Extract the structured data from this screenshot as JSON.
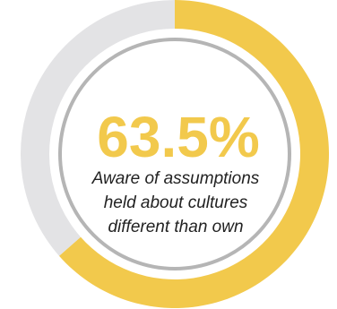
{
  "chart_data": {
    "type": "pie",
    "title": "",
    "value_label": "63.5%",
    "caption_lines": [
      "Aware of assumptions",
      "held about cultures",
      "different than own"
    ],
    "series": [
      {
        "value": 63.5
      },
      {
        "value": 36.5
      }
    ],
    "colors": {
      "filled": "#f2c94c",
      "remainder": "#e3e3e5",
      "inner_ring": "#b5b5b5",
      "value_text": "#f2c94c",
      "caption_text": "#222222"
    }
  }
}
